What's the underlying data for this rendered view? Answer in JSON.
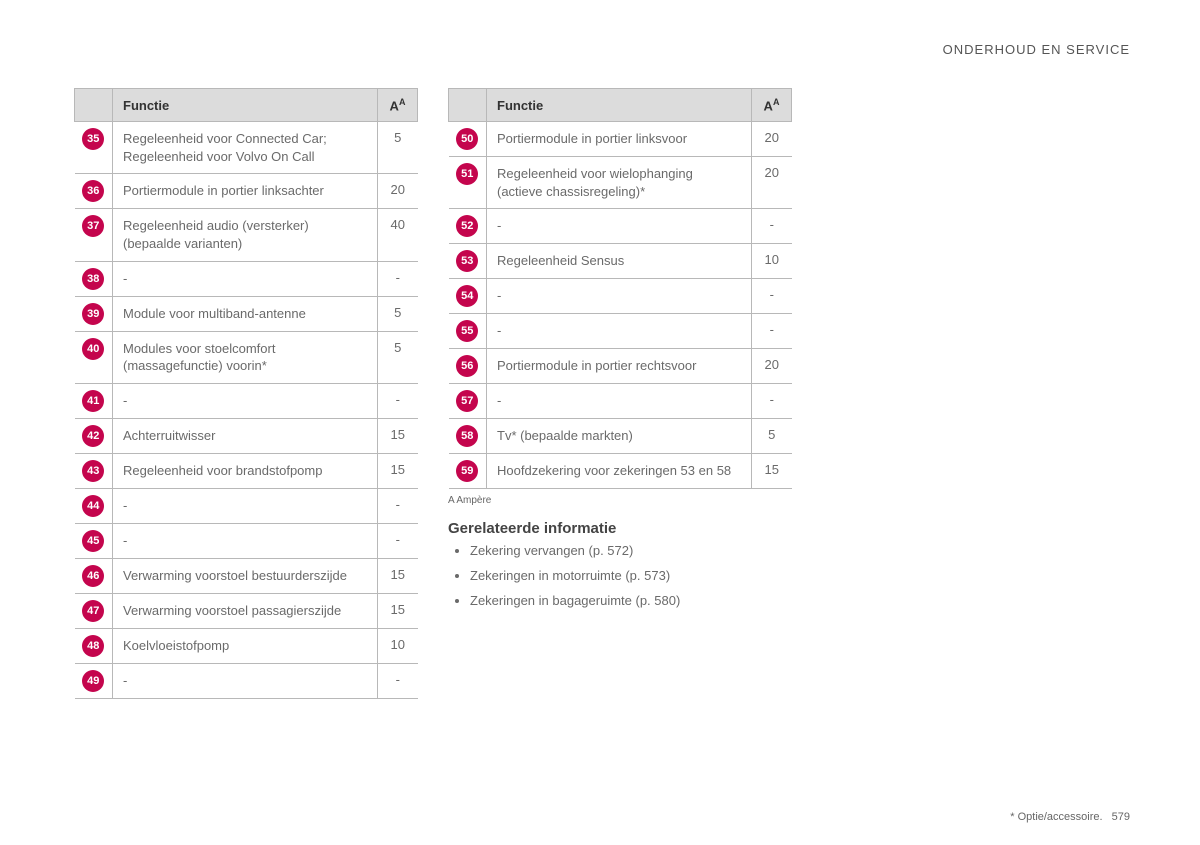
{
  "header": {
    "section_title": "ONDERHOUD EN SERVICE"
  },
  "tables": {
    "header_func": "Functie",
    "header_amp": "A",
    "header_amp_sup": "A",
    "left": [
      {
        "n": "35",
        "func": "Regeleenheid voor Connected Car; Regeleenheid voor Volvo On Call",
        "amp": "5"
      },
      {
        "n": "36",
        "func": "Portiermodule in portier linksachter",
        "amp": "20"
      },
      {
        "n": "37",
        "func": "Regeleenheid audio (versterker) (bepaalde varianten)",
        "amp": "40"
      },
      {
        "n": "38",
        "func": "-",
        "amp": "-"
      },
      {
        "n": "39",
        "func": "Module voor multiband-antenne",
        "amp": "5"
      },
      {
        "n": "40",
        "func": "Modules voor stoelcomfort (massagefunctie) voorin*",
        "amp": "5"
      },
      {
        "n": "41",
        "func": "-",
        "amp": "-"
      },
      {
        "n": "42",
        "func": "Achterruitwisser",
        "amp": "15"
      },
      {
        "n": "43",
        "func": "Regeleenheid voor brandstofpomp",
        "amp": "15"
      },
      {
        "n": "44",
        "func": "-",
        "amp": "-"
      },
      {
        "n": "45",
        "func": "-",
        "amp": "-"
      },
      {
        "n": "46",
        "func": "Verwarming voorstoel bestuurderszijde",
        "amp": "15"
      },
      {
        "n": "47",
        "func": "Verwarming voorstoel passagierszijde",
        "amp": "15"
      },
      {
        "n": "48",
        "func": "Koelvloeistofpomp",
        "amp": "10"
      },
      {
        "n": "49",
        "func": "-",
        "amp": "-"
      }
    ],
    "right": [
      {
        "n": "50",
        "func": "Portiermodule in portier linksvoor",
        "amp": "20"
      },
      {
        "n": "51",
        "func": "Regeleenheid voor wielophanging (actieve chassisregeling)*",
        "amp": "20"
      },
      {
        "n": "52",
        "func": "-",
        "amp": "-"
      },
      {
        "n": "53",
        "func": "Regeleenheid Sensus",
        "amp": "10"
      },
      {
        "n": "54",
        "func": "-",
        "amp": "-"
      },
      {
        "n": "55",
        "func": "-",
        "amp": "-"
      },
      {
        "n": "56",
        "func": "Portiermodule in portier rechtsvoor",
        "amp": "20"
      },
      {
        "n": "57",
        "func": "-",
        "amp": "-"
      },
      {
        "n": "58",
        "func": "Tv* (bepaalde markten)",
        "amp": "5"
      },
      {
        "n": "59",
        "func": "Hoofdzekering voor zekeringen 53 en 58",
        "amp": "15"
      }
    ]
  },
  "footnote_a": "A Ampère",
  "related": {
    "heading": "Gerelateerde informatie",
    "items": [
      "Zekering vervangen (p. 572)",
      "Zekeringen in motorruimte (p. 573)",
      "Zekeringen in bagageruimte (p. 580)"
    ]
  },
  "footer": {
    "note": "* Optie/accessoire.",
    "page": "579"
  },
  "style": {
    "badge_color": "#c4054d",
    "header_bg": "#dcdcdc",
    "border_color": "#b8b8b8",
    "text_color": "#6a6a6a"
  }
}
